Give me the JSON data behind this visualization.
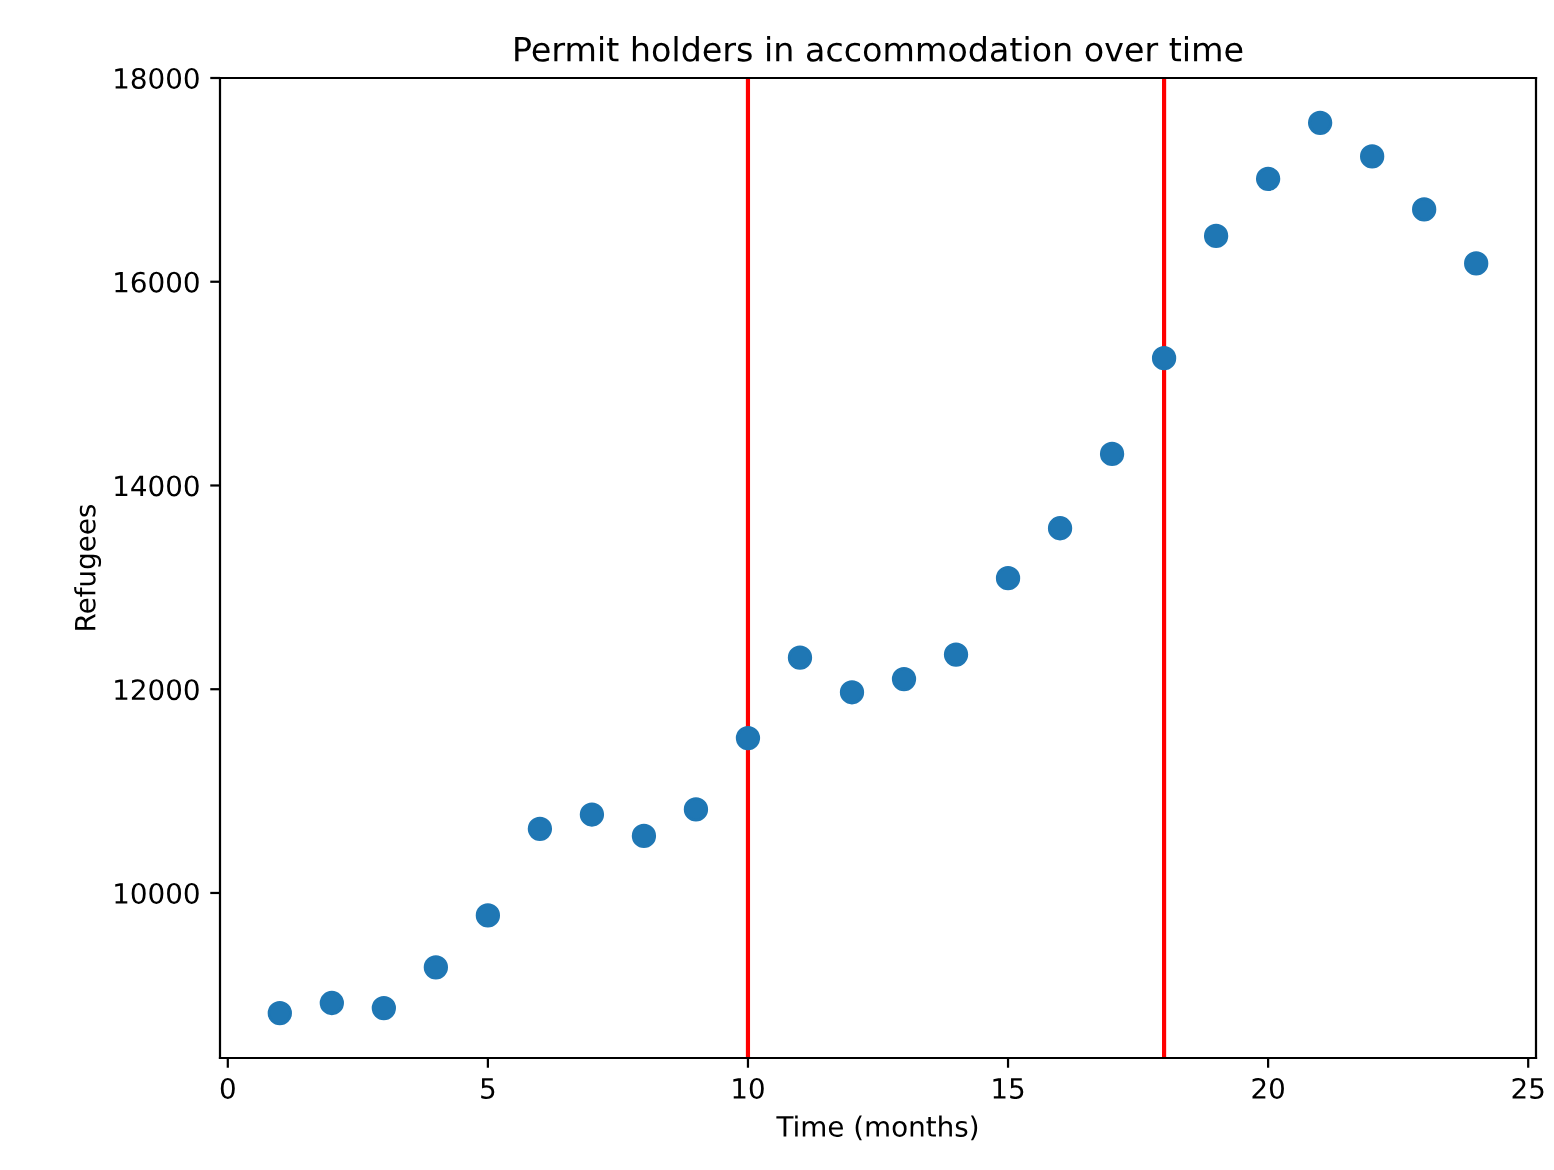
{
  "chart_data": {
    "type": "scatter",
    "title": "Permit holders in accommodation over time",
    "xlabel": "Time (months)",
    "ylabel": "Refugees",
    "x": [
      1,
      2,
      3,
      4,
      5,
      6,
      7,
      8,
      9,
      10,
      11,
      12,
      13,
      14,
      15,
      16,
      17,
      18,
      19,
      20,
      21,
      22,
      23,
      24
    ],
    "series": [
      {
        "color": "#1f77b4",
        "values": [
          8820,
          8920,
          8870,
          9270,
          9780,
          10630,
          10770,
          10560,
          10820,
          11520,
          12310,
          11970,
          12100,
          12340,
          13090,
          13580,
          14310,
          15250,
          16450,
          17010,
          17560,
          17230,
          16710,
          16180
        ]
      }
    ],
    "xlim": [
      -0.15,
      25.15
    ],
    "ylim": [
      8380,
      18000
    ],
    "xticks": [
      0,
      5,
      10,
      15,
      20,
      25
    ],
    "yticks": [
      10000,
      12000,
      14000,
      16000,
      18000
    ],
    "ref_lines": [
      {
        "axis": "x",
        "value": 10,
        "color": "#ff0000"
      },
      {
        "axis": "x",
        "value": 18,
        "color": "#ff0000"
      }
    ],
    "marker": "circle",
    "grid": false,
    "legend": false
  }
}
